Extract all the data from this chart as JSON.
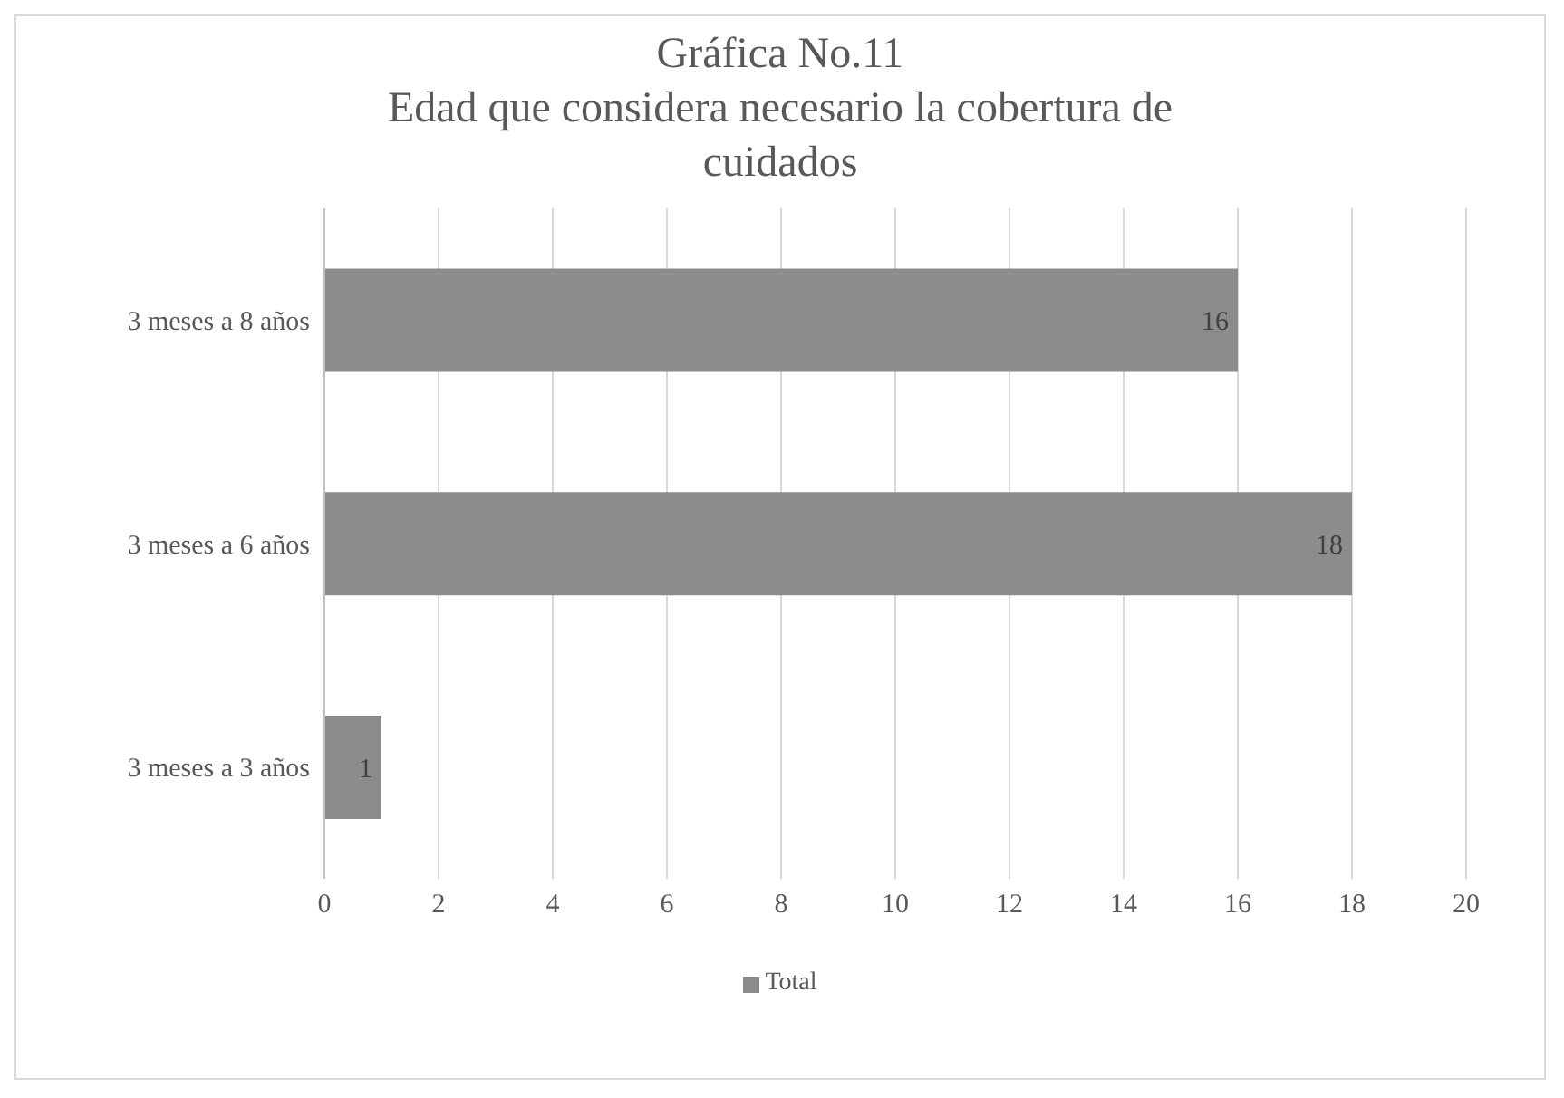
{
  "chart_data": {
    "type": "bar",
    "orientation": "horizontal",
    "title": "Gráfica No.11",
    "subtitle": "Edad que considera necesario la cobertura de cuidados",
    "categories": [
      "3 meses a 8 años",
      "3 meses a 6 años",
      "3 meses a 3 años"
    ],
    "series": [
      {
        "name": "Total",
        "color": "#8c8c8c",
        "values": [
          16,
          18,
          1
        ]
      }
    ],
    "xlim": [
      0,
      20
    ],
    "xticks": [
      0,
      2,
      4,
      6,
      8,
      10,
      12,
      14,
      16,
      18,
      20
    ],
    "grid": "x",
    "legend": "bottom",
    "data_labels": true
  }
}
